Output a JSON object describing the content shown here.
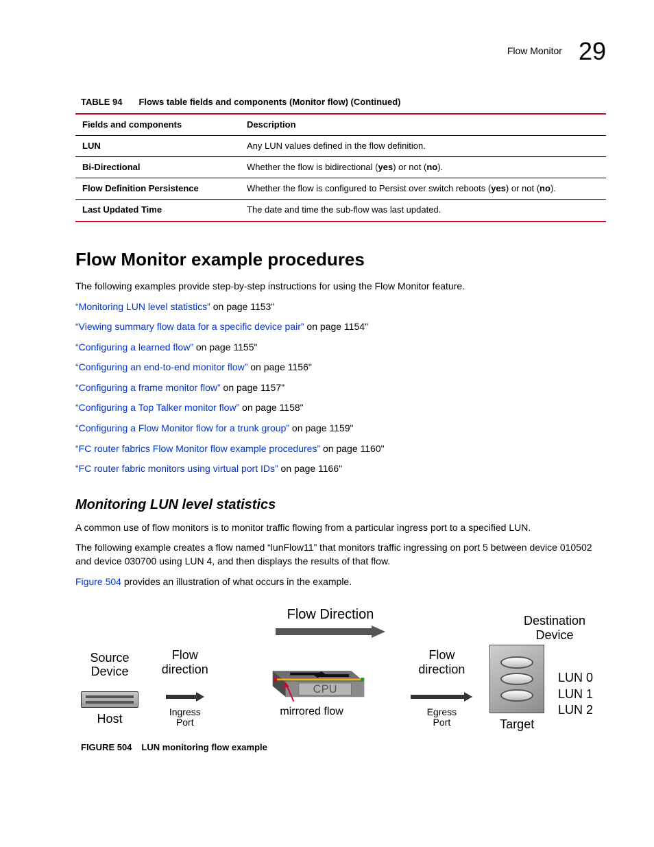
{
  "header": {
    "title": "Flow Monitor",
    "page_number": "29"
  },
  "table": {
    "number": "TABLE 94",
    "caption": "Flows table fields and components (Monitor flow) (Continued)",
    "columns": [
      "Fields and components",
      "Description"
    ],
    "rows": [
      {
        "field": "LUN",
        "desc_parts": [
          "Any LUN values defined in the flow definition."
        ]
      },
      {
        "field": "Bi-Directional",
        "desc_parts": [
          "Whether the flow is bidirectional (",
          "yes",
          ") or not (",
          "no",
          ")."
        ]
      },
      {
        "field": "Flow Definition Persistence",
        "desc_parts": [
          "Whether the flow is configured to Persist over switch reboots (",
          "yes",
          ") or not (",
          "no",
          ")."
        ]
      },
      {
        "field": "Last Updated Time",
        "desc_parts": [
          "The date and time the sub-flow was last updated."
        ]
      }
    ]
  },
  "section": {
    "heading": "Flow Monitor example procedures",
    "intro": "The following examples provide step-by-step instructions for using the Flow Monitor feature.",
    "links": [
      {
        "text": "“Monitoring LUN level statistics”",
        "suffix": " on page 1153\""
      },
      {
        "text": "“Viewing summary flow data for a specific device pair”",
        "suffix": " on page 1154\""
      },
      {
        "text": "“Configuring a learned flow”",
        "suffix": " on page 1155\""
      },
      {
        "text": "“Configuring an end-to-end monitor flow”",
        "suffix": " on page 1156\""
      },
      {
        "text": "“Configuring a frame monitor flow”",
        "suffix": " on page 1157\""
      },
      {
        "text": "“Configuring a Top Talker monitor flow”",
        "suffix": " on page 1158\""
      },
      {
        "text": "“Configuring a Flow Monitor flow for a trunk group”",
        "suffix": " on page 1159\""
      },
      {
        "text": "“FC router fabrics Flow Monitor flow example procedures”",
        "suffix": " on page 1160\""
      },
      {
        "text": "“FC router fabric monitors using virtual port IDs”",
        "suffix": " on page 1166\""
      }
    ]
  },
  "subsection": {
    "heading": "Monitoring LUN level statistics",
    "para1": "A common use of flow monitors is to monitor traffic flowing from a particular ingress port to a specified LUN.",
    "para2": "The following example creates a flow named “lunFlow11” that monitors traffic ingressing on port 5 between device 010502 and device 030700 using LUN 4, and then displays the results of that flow.",
    "para3_prefix": "Figure 504",
    "para3_suffix": " provides an illustration of what occurs in the example."
  },
  "figure": {
    "top_label": "Flow Direction",
    "dest_label_top": "Destination",
    "dest_label_bot": "Device",
    "src_label_top": "Source",
    "src_label_bot": "Device",
    "flow_dir_top": "Flow",
    "flow_dir_bot": "direction",
    "ingress_top": "Ingress",
    "ingress_bot": "Port",
    "egress_top": "Egress",
    "egress_bot": "Port",
    "cpu": "CPU",
    "host": "Host",
    "target": "Target",
    "mirrored": "mirrored flow",
    "lun0": "LUN 0",
    "lun1": "LUN 1",
    "lun2": "LUN 2",
    "caption_num": "FIGURE 504",
    "caption_text": "LUN monitoring flow example",
    "colors": {
      "accent_red": "#d6002a",
      "link_blue": "#0033cc",
      "arrow_gray": "#555555",
      "switch_top": "#6e6e6e",
      "switch_side": "#4a4a4a",
      "cpu_band": "#9a9a9a",
      "yellow": "#ffb000",
      "green": "#2e8b2e"
    }
  }
}
